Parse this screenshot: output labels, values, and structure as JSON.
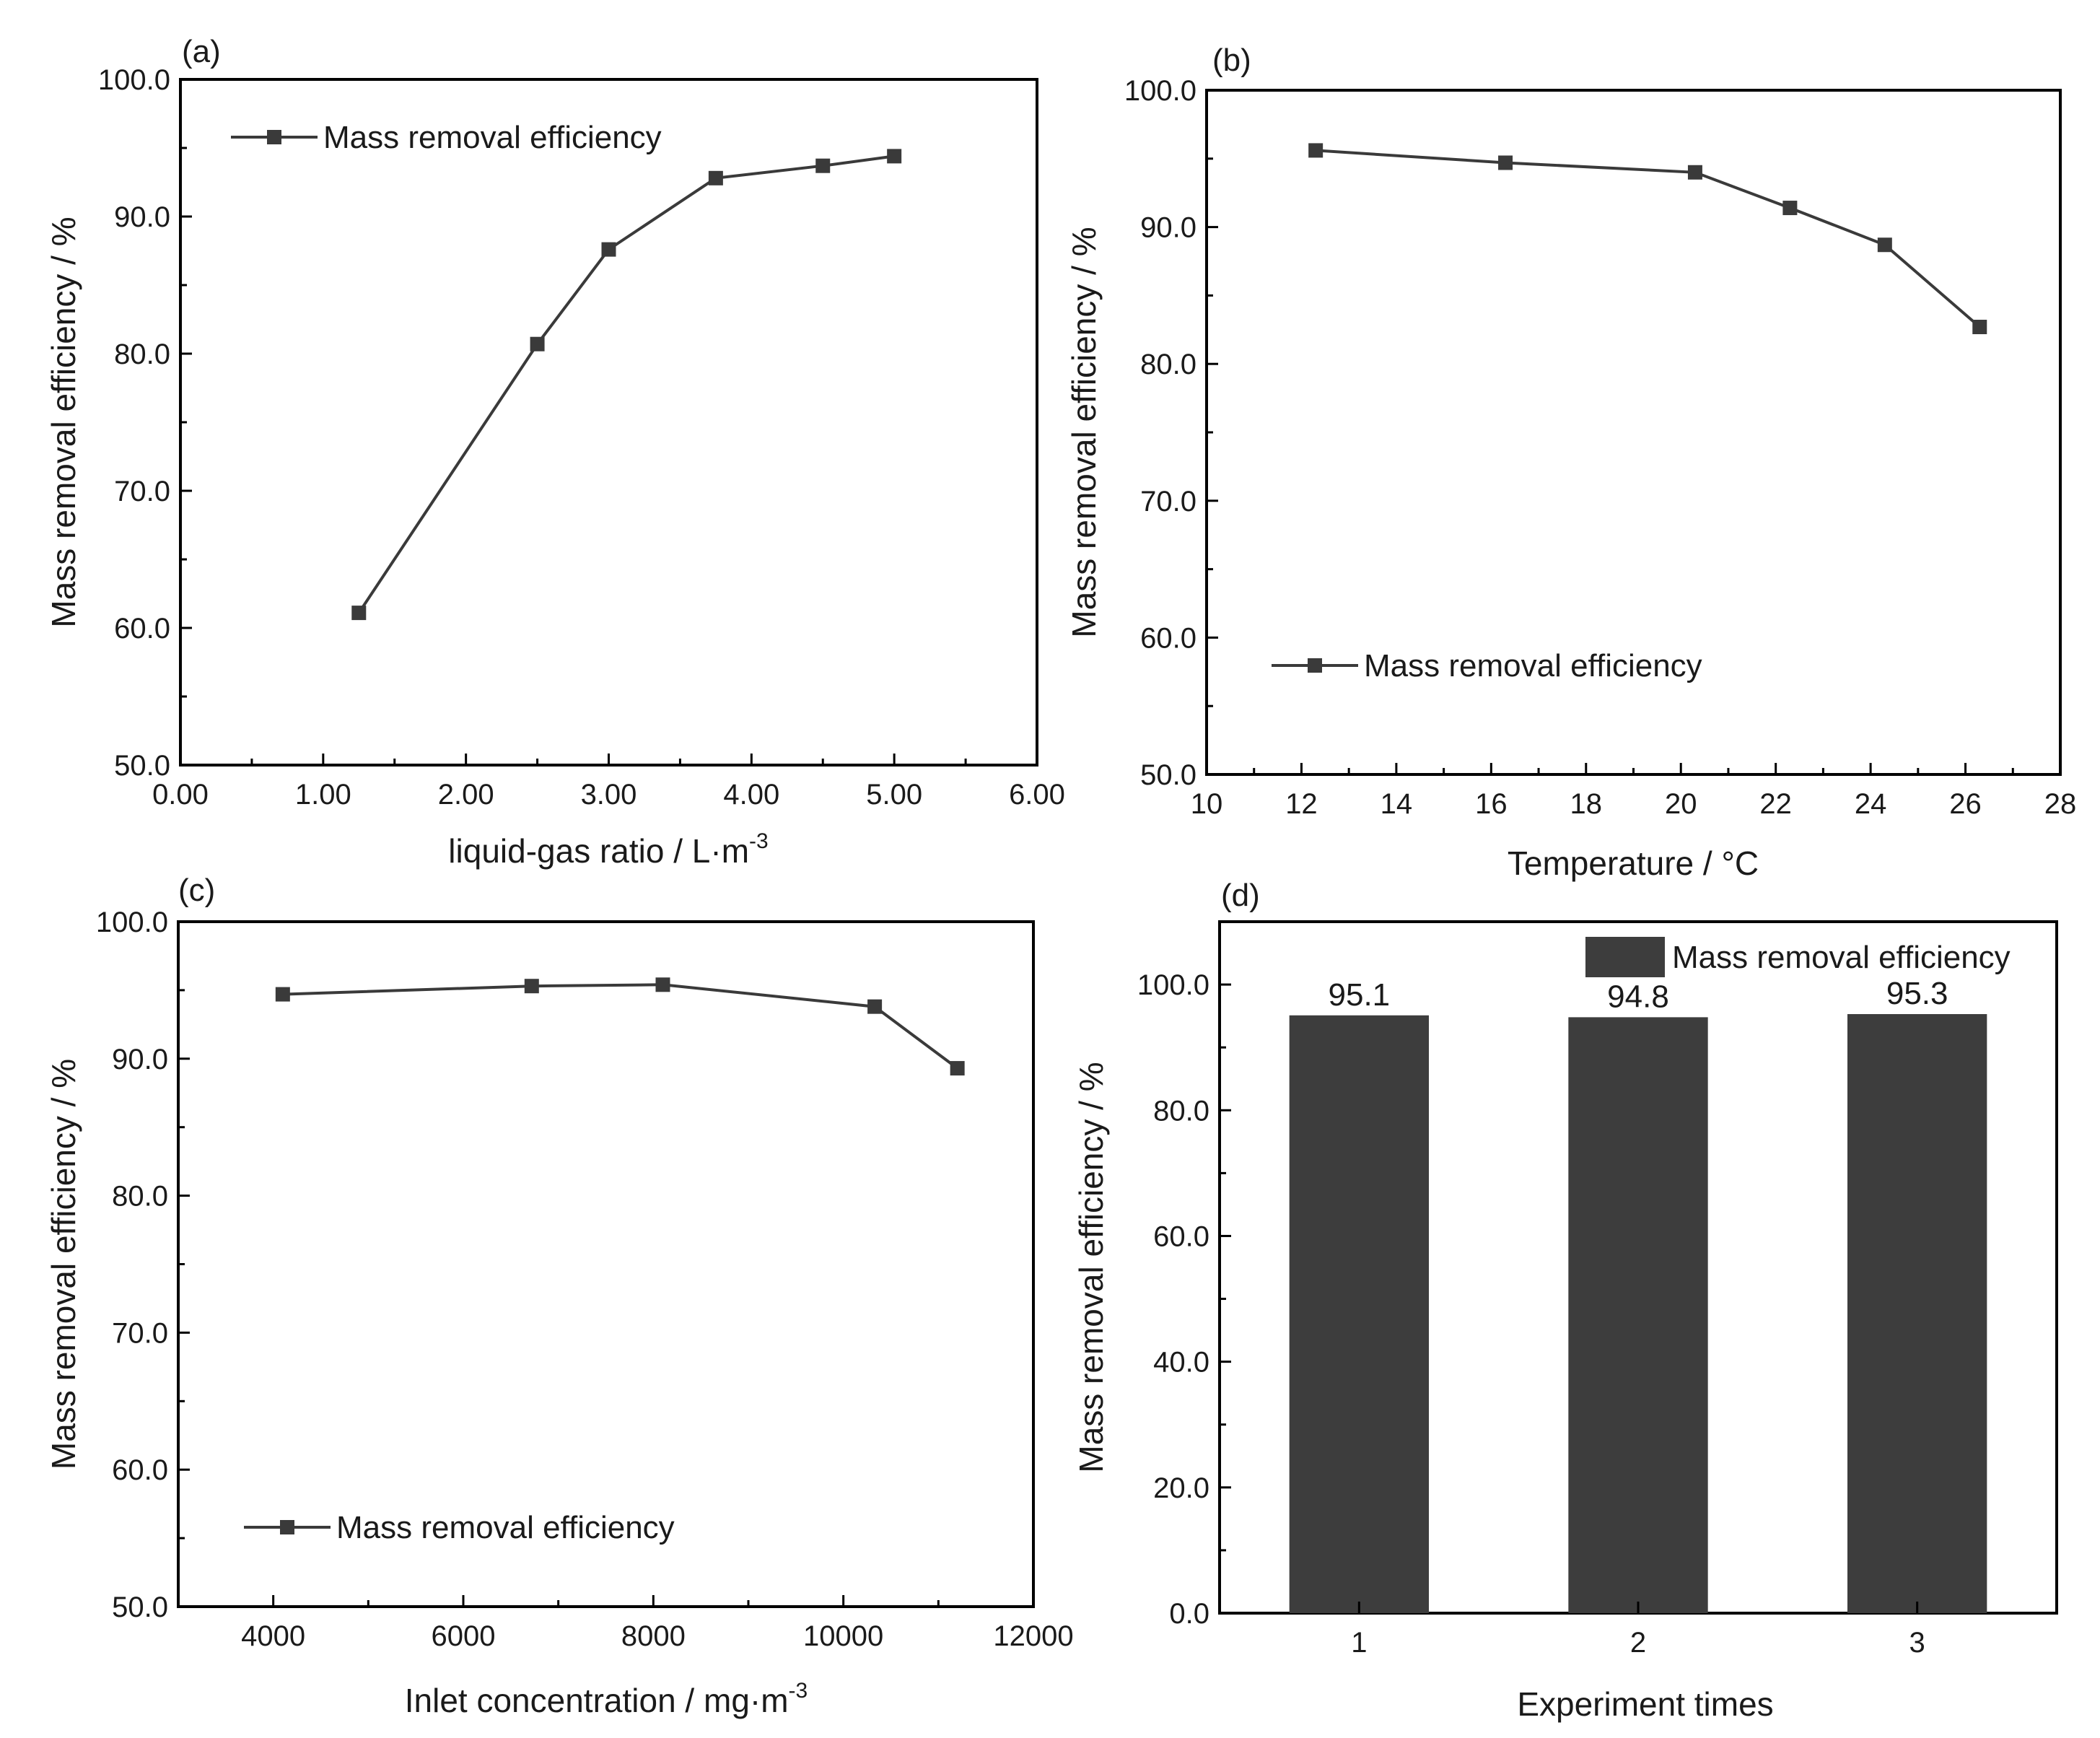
{
  "colors": {
    "line": "#3a3a3a",
    "marker": "#3a3a3a",
    "bar": "#3d3d3d",
    "axis": "#000000",
    "text": "#1a1a1a"
  },
  "chart_data": [
    {
      "type": "line",
      "panel_label": "(a)",
      "xlabel": "liquid-gas ratio / L·m",
      "xlabel_superscript": "-3",
      "ylabel": "Mass removal efficiency / %",
      "xlim": [
        0,
        6
      ],
      "ylim": [
        50,
        100
      ],
      "x_ticks": [
        "0.00",
        "1.00",
        "2.00",
        "3.00",
        "4.00",
        "5.00",
        "6.00"
      ],
      "y_ticks": [
        "50.0",
        "60.0",
        "70.0",
        "80.0",
        "90.0",
        "100.0"
      ],
      "legend": "Mass removal efficiency",
      "legend_position": "top-left",
      "series": [
        {
          "name": "Mass removal efficiency",
          "x": [
            1.25,
            2.5,
            3.0,
            3.75,
            4.5,
            5.0
          ],
          "y": [
            61.1,
            80.7,
            87.6,
            92.8,
            93.7,
            94.4
          ]
        }
      ]
    },
    {
      "type": "line",
      "panel_label": "(b)",
      "xlabel": "Temperature / °C",
      "ylabel": "Mass removal efficiency / %",
      "xlim": [
        10,
        28
      ],
      "ylim": [
        50,
        100
      ],
      "x_ticks": [
        "10",
        "12",
        "14",
        "16",
        "18",
        "20",
        "22",
        "24",
        "26",
        "28"
      ],
      "y_ticks": [
        "50.0",
        "60.0",
        "70.0",
        "80.0",
        "90.0",
        "100.0"
      ],
      "legend": "Mass removal efficiency",
      "legend_position": "bottom-left",
      "series": [
        {
          "name": "Mass removal efficiency",
          "x": [
            12.3,
            16.3,
            20.3,
            22.3,
            24.3,
            26.3
          ],
          "y": [
            95.6,
            94.7,
            94.0,
            91.4,
            88.7,
            82.7
          ]
        }
      ]
    },
    {
      "type": "line",
      "panel_label": "(c)",
      "xlabel": "Inlet concentration / mg·m",
      "xlabel_superscript": "-3",
      "ylabel": "Mass removal efficiency / %",
      "xlim": [
        3000,
        12000
      ],
      "ylim": [
        50,
        100
      ],
      "x_ticks": [
        "4000",
        "6000",
        "8000",
        "10000",
        "12000"
      ],
      "y_ticks": [
        "50.0",
        "60.0",
        "70.0",
        "80.0",
        "90.0",
        "100.0"
      ],
      "legend": "Mass removal efficiency",
      "legend_position": "bottom-left",
      "series": [
        {
          "name": "Mass removal efficiency",
          "x": [
            4100,
            6720,
            8100,
            10330,
            11200
          ],
          "y": [
            94.7,
            95.3,
            95.4,
            93.8,
            89.3
          ]
        }
      ]
    },
    {
      "type": "bar",
      "panel_label": "(d)",
      "xlabel": "Experiment times",
      "ylabel": "Mass removal efficiency / %",
      "categories": [
        "1",
        "2",
        "3"
      ],
      "values": [
        95.1,
        94.8,
        95.3
      ],
      "value_labels": [
        "95.1",
        "94.8",
        "95.3"
      ],
      "ylim": [
        0,
        110
      ],
      "y_ticks": [
        "0.0",
        "20.0",
        "40.0",
        "60.0",
        "80.0",
        "100.0"
      ],
      "legend": "Mass removal efficiency",
      "legend_position": "top-right"
    }
  ]
}
